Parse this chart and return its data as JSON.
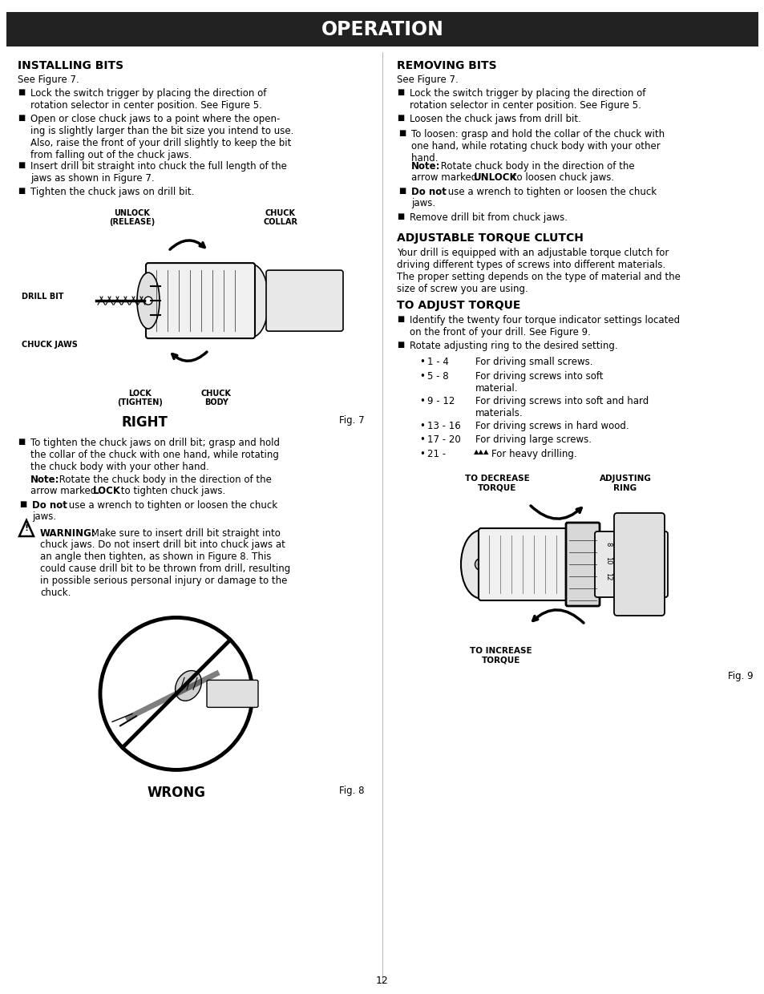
{
  "page_bg": "#ffffff",
  "header_bg": "#222222",
  "header_text": "OPERATION",
  "header_text_color": "#ffffff",
  "page_number": "12",
  "installing_bits_title": "INSTALLING BITS",
  "installing_bits_sub": "See Figure 7.",
  "installing_bits_bullets": [
    "Lock the switch trigger by placing the direction of\nrotation selector in center position. See Figure 5.",
    "Open or close chuck jaws to a point where the open-\ning is slightly larger than the bit size you intend to use.\nAlso, raise the front of your drill slightly to keep the bit\nfrom falling out of the chuck jaws.",
    "Insert drill bit straight into chuck the full length of the\njaws as shown in Figure 7.",
    "Tighten the chuck jaws on drill bit."
  ],
  "after_fig7_bullet1": "To tighten the chuck jaws on drill bit; grasp and hold\nthe collar of the chuck with one hand, while rotating\nthe chuck body with your other hand.",
  "after_fig7_note_pre": "Note:",
  "after_fig7_note_mid": " Rotate the chuck body in the direction of the\narrow marked ",
  "after_fig7_note_bold": "LOCK",
  "after_fig7_note_end": " to tighten chuck jaws.",
  "after_fig7_bullet2_pre": "Do not",
  "after_fig7_bullet2_end": " use a wrench to tighten or loosen the chuck\njaws.",
  "warning_bold": "WARNING:",
  "warning_rest": " Make sure to insert drill bit straight into\nchuck jaws. Do not insert drill bit into chuck jaws at\nan angle then tighten, as shown in Figure 8. This\ncould cause drill bit to be thrown from drill, resulting\nin possible serious personal injury or damage to the\nchuck.",
  "removing_bits_title": "REMOVING BITS",
  "removing_bits_sub": "See Figure 7.",
  "removing_bits_b1": "Lock the switch trigger by placing the direction of\nrotation selector in center position. See Figure 5.",
  "removing_bits_b2": "Loosen the chuck jaws from drill bit.",
  "removing_bits_b3_pre": "To loosen: grasp and hold the collar of the chuck with\none hand, while rotating chuck body with your other\nhand. ",
  "removing_bits_b3_bold": "Note:",
  "removing_bits_b3_mid": " Rotate chuck body in the direction of the\narrow marked ",
  "removing_bits_b3_bold2": "UNLOCK",
  "removing_bits_b3_end": " to loosen chuck jaws.",
  "removing_bits_b4_pre": "Do not",
  "removing_bits_b4_end": " use a wrench to tighten or loosen the chuck\njaws.",
  "removing_bits_b5": "Remove drill bit from chuck jaws.",
  "atc_title": "ADJUSTABLE TORQUE CLUTCH",
  "atc_body": "Your drill is equipped with an adjustable torque clutch for\ndriving different types of screws into different materials.\nThe proper setting depends on the type of material and the\nsize of screw you are using.",
  "tat_title": "TO ADJUST TORQUE",
  "tat_b1": "Identify the twenty four torque indicator settings located\non the front of your drill. See Figure 9.",
  "tat_b2": "Rotate adjusting ring to the desired setting.",
  "tat_sub": [
    [
      "1 - 4",
      "For driving small screws."
    ],
    [
      "5 - 8",
      "For driving screws into soft\nmaterial."
    ],
    [
      "9 - 12",
      "For driving screws into soft and hard\nmaterials."
    ],
    [
      "13 - 16",
      "For driving screws in hard wood."
    ],
    [
      "17 - 20",
      "For driving large screws."
    ],
    [
      "21 -",
      "For heavy drilling."
    ]
  ]
}
